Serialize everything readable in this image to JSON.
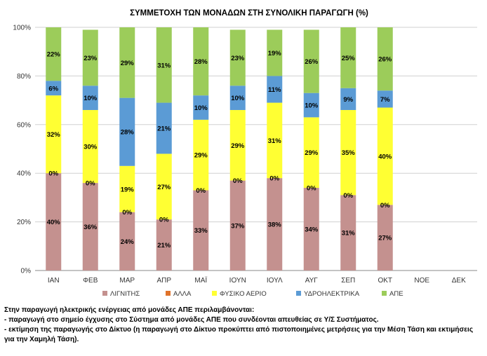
{
  "chart_data": {
    "type": "bar",
    "stacked": true,
    "title": "ΣΥΜΜΕΤΟΧΗ ΤΩΝ ΜΟΝΑΔΩΝ ΣΤΗ ΣΥΝΟΛΙΚΗ ΠΑΡΑΓΩΓΗ (%)",
    "categories": [
      "ΙΑΝ",
      "ΦΕΒ",
      "ΜΑΡ",
      "ΑΠΡ",
      "ΜΑΪ",
      "ΙΟΥΝ",
      "ΙΟΥΛ",
      "ΑΥΓ",
      "ΣΕΠ",
      "ΟΚΤ",
      "ΝΟΕ",
      "ΔΕΚ"
    ],
    "ylim": [
      0,
      100
    ],
    "yticks": [
      0,
      20,
      40,
      60,
      80,
      100
    ],
    "ytick_labels": [
      "0%",
      "20%",
      "40%",
      "60%",
      "80%",
      "100%"
    ],
    "grid": true,
    "legend_position": "bottom",
    "series": [
      {
        "name": "ΛΙΓΝΙΤΗΣ",
        "color": "#c4918f",
        "values": [
          40,
          36,
          24,
          21,
          33,
          37,
          38,
          34,
          31,
          27,
          null,
          null
        ],
        "labels": [
          "40%",
          "36%",
          "24%",
          "21%",
          "33%",
          "37%",
          "38%",
          "34%",
          "31%",
          "27%",
          "",
          ""
        ]
      },
      {
        "name": "ΑΛΛΑ",
        "color": "#e0732b",
        "values": [
          0,
          0,
          0,
          0,
          0,
          0,
          0,
          0,
          0,
          0,
          null,
          null
        ],
        "labels": [
          "0%",
          "0%",
          "0%",
          "0%",
          "0%",
          "0%",
          "0%",
          "0%",
          "0%",
          "0%",
          "",
          ""
        ]
      },
      {
        "name": "ΦΥΣΙΚΟ ΑΕΡΙΟ",
        "color": "#ffff33",
        "values": [
          32,
          30,
          19,
          27,
          29,
          29,
          31,
          29,
          35,
          40,
          null,
          null
        ],
        "labels": [
          "32%",
          "30%",
          "19%",
          "27%",
          "29%",
          "29%",
          "31%",
          "29%",
          "35%",
          "40%",
          "",
          ""
        ]
      },
      {
        "name": "ΥΔΡΟΗΛΕΚΤΡΙΚΑ",
        "color": "#5b9bd5",
        "values": [
          6,
          10,
          28,
          21,
          10,
          10,
          11,
          10,
          9,
          7,
          null,
          null
        ],
        "labels": [
          "6%",
          "10%",
          "28%",
          "21%",
          "10%",
          "10%",
          "11%",
          "10%",
          "9%",
          "7%",
          "",
          ""
        ]
      },
      {
        "name": "ΑΠΕ",
        "color": "#9ccc5a",
        "values": [
          22,
          23,
          29,
          31,
          28,
          23,
          19,
          26,
          25,
          26,
          null,
          null
        ],
        "labels": [
          "22%",
          "23%",
          "29%",
          "31%",
          "28%",
          "23%",
          "19%",
          "26%",
          "25%",
          "26%",
          "",
          ""
        ]
      }
    ]
  },
  "notes": {
    "line1": "Στην παραγωγή ηλεκτρικής ενέργειας από μονάδες ΑΠΕ περιλαμβάνονται:",
    "line2": "- παραγωγή στο σημείο έγχυσης στο Σύστημα από μονάδες ΑΠΕ που συνδέονται απευθείας σε Υ/Σ Συστήματος.",
    "line3": "- εκτίμηση της παραγωγής στο Δίκτυο (η παραγωγή στο Δίκτυο προκύπτει από πιστοποιημένες μετρήσεις για την Μέση Τάση και εκτιμήσεις για την Χαμηλή Τάση)."
  }
}
